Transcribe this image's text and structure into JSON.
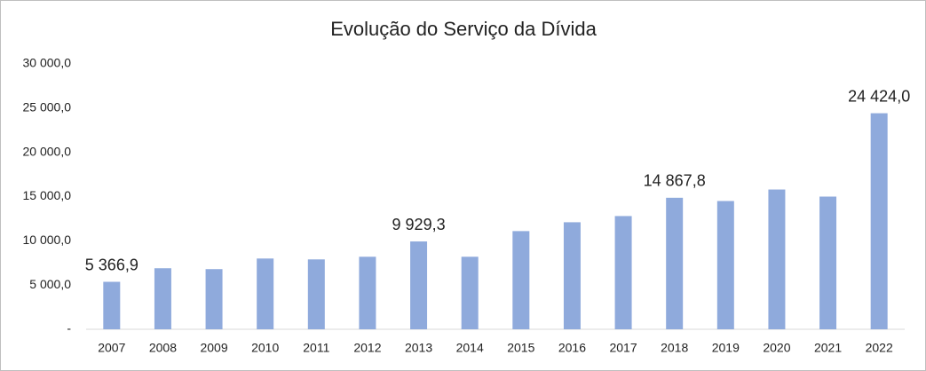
{
  "chart_data": {
    "type": "bar",
    "title": "Evolução do Serviço da Dívida",
    "categories": [
      "2007",
      "2008",
      "2009",
      "2010",
      "2011",
      "2012",
      "2013",
      "2014",
      "2015",
      "2016",
      "2017",
      "2018",
      "2019",
      "2020",
      "2021",
      "2022"
    ],
    "values": [
      5366.9,
      6900,
      6800,
      8000,
      7900,
      8200,
      9929.3,
      8200,
      11100,
      12100,
      12800,
      14867.8,
      14500,
      15800,
      15000,
      24424.0
    ],
    "value_labels": [
      "5 366,9",
      null,
      null,
      null,
      null,
      null,
      "9 929,3",
      null,
      null,
      null,
      null,
      "14 867,8",
      null,
      null,
      null,
      "24 424,0"
    ],
    "color": "#8faadc",
    "ylim": [
      0,
      30000
    ],
    "yticks": [
      {
        "value": 0,
        "label": "-"
      },
      {
        "value": 5000,
        "label": "5 000,0"
      },
      {
        "value": 10000,
        "label": "10 000,0"
      },
      {
        "value": 15000,
        "label": "15 000,0"
      },
      {
        "value": 20000,
        "label": "20 000,0"
      },
      {
        "value": 25000,
        "label": "25 000,0"
      },
      {
        "value": 30000,
        "label": "30 000,0"
      }
    ],
    "grid": false
  }
}
